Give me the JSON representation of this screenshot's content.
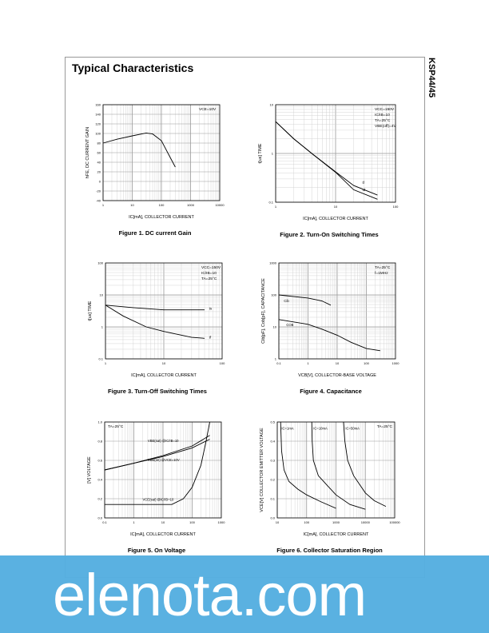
{
  "page": {
    "title": "Typical Characteristics",
    "part_number": "KSP44/45"
  },
  "watermark": {
    "text": "elenota.com",
    "color": "#55aee0"
  },
  "chart_data": [
    {
      "type": "line",
      "caption": "Figure 1. DC current Gain",
      "xlabel": "I_C[mA], COLLECTOR CURRENT",
      "ylabel": "h_FE, DC CURRENT GAIN",
      "xscale": "log",
      "xlim": [
        1,
        10000
      ],
      "xticks": [
        1,
        10,
        100,
        1000,
        10000
      ],
      "yscale": "linear",
      "ylim": [
        -40,
        160
      ],
      "yticks": [
        -40,
        -20,
        0,
        20,
        40,
        60,
        80,
        100,
        120,
        140,
        160
      ],
      "grid": true,
      "annotations": [
        "V_CE=10V"
      ],
      "series": [
        {
          "x": [
            1,
            3,
            10,
            30,
            50,
            100,
            200,
            300
          ],
          "y": [
            80,
            88,
            95,
            101,
            99,
            85,
            50,
            30
          ]
        }
      ]
    },
    {
      "type": "line",
      "caption": "Figure 2. Turn-On Switching Times",
      "xlabel": "I_C[mA], COLLECTOR CURRENT",
      "ylabel": "t[us] TIME",
      "xscale": "log",
      "xlim": [
        1,
        100
      ],
      "xticks": [
        1,
        10,
        100
      ],
      "yscale": "log",
      "ylim": [
        0.1,
        10
      ],
      "yticks": [
        0.1,
        1,
        10
      ],
      "grid": true,
      "annotations": [
        "V_CC=150V",
        "I_C/I_B=10",
        "T_A=25°C",
        "V_BE(off)=4V"
      ],
      "series": [
        {
          "name": "tf",
          "x": [
            1,
            2,
            4,
            10,
            20,
            50
          ],
          "y": [
            4.5,
            2,
            1,
            0.42,
            0.22,
            0.14
          ]
        },
        {
          "name": "td",
          "x": [
            1,
            2,
            4,
            10,
            20,
            50
          ],
          "y": [
            4.5,
            2,
            1,
            0.41,
            0.18,
            0.115
          ]
        }
      ]
    },
    {
      "type": "line",
      "caption": "Figure 3. Turn-Off Switching Times",
      "xlabel": "I_C[mA], COLLECTOR CURRENT",
      "ylabel": "t[us] TIME",
      "xscale": "log",
      "xlim": [
        1,
        100
      ],
      "xticks": [
        1,
        10,
        100
      ],
      "yscale": "log",
      "ylim": [
        0.1,
        100
      ],
      "yticks": [
        0.1,
        1,
        10,
        100
      ],
      "grid": true,
      "annotations": [
        "V_CC=150V",
        "I_C/I_B=10",
        "T_A=25°C"
      ],
      "series": [
        {
          "name": "ts",
          "x": [
            1,
            3,
            10,
            50
          ],
          "y": [
            4.8,
            4,
            3.4,
            3.4
          ]
        },
        {
          "name": "tf",
          "x": [
            1,
            2,
            5,
            10,
            30,
            50
          ],
          "y": [
            4.8,
            2.2,
            1,
            0.72,
            0.47,
            0.44
          ]
        }
      ]
    },
    {
      "type": "line",
      "caption": "Figure 4. Capacitance",
      "xlabel": "V_CB[V], COLLECTOR-BASE VOLTAGE",
      "ylabel": "C_ib[pF], C_ob[pF], CAPACITANCE",
      "xscale": "log",
      "xlim": [
        0.1,
        1000
      ],
      "xticks": [
        0.1,
        1,
        10,
        100,
        1000
      ],
      "yscale": "log",
      "ylim": [
        1,
        1000
      ],
      "yticks": [
        1,
        10,
        100,
        1000
      ],
      "grid": true,
      "annotations": [
        "T_A=25°C",
        "f=1MHz"
      ],
      "series": [
        {
          "name": "Cib",
          "x": [
            0.1,
            1,
            3,
            6
          ],
          "y": [
            100,
            80,
            65,
            48
          ]
        },
        {
          "name": "COB",
          "x": [
            0.1,
            1,
            3,
            10,
            30,
            100,
            300
          ],
          "y": [
            17,
            12,
            8.5,
            5.5,
            3.3,
            2.1,
            1.8
          ]
        }
      ]
    },
    {
      "type": "line",
      "caption": "Figure 5. On Voltage",
      "xlabel": "I_C[mA], COLLECTOR CURRENT",
      "ylabel": "[V] VOLTAGE",
      "xscale": "log",
      "xlim": [
        0.1,
        1000
      ],
      "xticks": [
        0.1,
        1,
        10,
        100,
        1000
      ],
      "yscale": "linear",
      "ylim": [
        0,
        1.0
      ],
      "yticks": [
        0.0,
        0.2,
        0.4,
        0.6,
        0.8,
        1.0
      ],
      "grid": true,
      "annotations": [
        "T_A=25°C"
      ],
      "series": [
        {
          "name": "V_BE(sat) @I_C/I_B=10",
          "x": [
            0.1,
            1,
            10,
            100,
            400
          ],
          "y": [
            0.5,
            0.57,
            0.65,
            0.75,
            0.86
          ]
        },
        {
          "name": "V_BE(on) @V_CE=10V",
          "x": [
            0.1,
            1,
            10,
            100,
            400
          ],
          "y": [
            0.5,
            0.57,
            0.64,
            0.73,
            0.82
          ]
        },
        {
          "name": "V_CE(sat) @I_C/I_B=10",
          "x": [
            0.1,
            20,
            50,
            100,
            200,
            300,
            400
          ],
          "y": [
            0.14,
            0.14,
            0.2,
            0.32,
            0.55,
            0.8,
            1.0
          ]
        }
      ]
    },
    {
      "type": "line",
      "caption": "Figure 6. Collector Saturation Region",
      "xlabel": "I_C[mA], COLLECTOR CURRENT",
      "ylabel": "V_CE[V] COLLECTOR EMITTER VOLTAGE",
      "xscale": "log",
      "xlim": [
        10,
        100000
      ],
      "xticks": [
        10,
        100,
        1000,
        10000,
        100000
      ],
      "yscale": "linear",
      "ylim": [
        0,
        0.5
      ],
      "yticks": [
        0.0,
        0.1,
        0.2,
        0.3,
        0.4,
        0.5
      ],
      "grid": true,
      "annotations": [
        "T_A=25°C"
      ],
      "series": [
        {
          "name": "I_C=1mA",
          "x": [
            13,
            14,
            17,
            25,
            50,
            100,
            300,
            1000
          ],
          "y": [
            0.5,
            0.35,
            0.25,
            0.19,
            0.15,
            0.12,
            0.085,
            0.05
          ]
        },
        {
          "name": "I_C=10mA",
          "x": [
            150,
            155,
            170,
            250,
            500,
            1000,
            3000,
            10000
          ],
          "y": [
            0.5,
            0.4,
            0.3,
            0.22,
            0.17,
            0.12,
            0.07,
            0.045
          ]
        },
        {
          "name": "I_C=50mA",
          "x": [
            1800,
            2000,
            2500,
            4000,
            10000,
            20000,
            50000
          ],
          "y": [
            0.5,
            0.4,
            0.3,
            0.22,
            0.13,
            0.09,
            0.06
          ]
        }
      ]
    }
  ]
}
